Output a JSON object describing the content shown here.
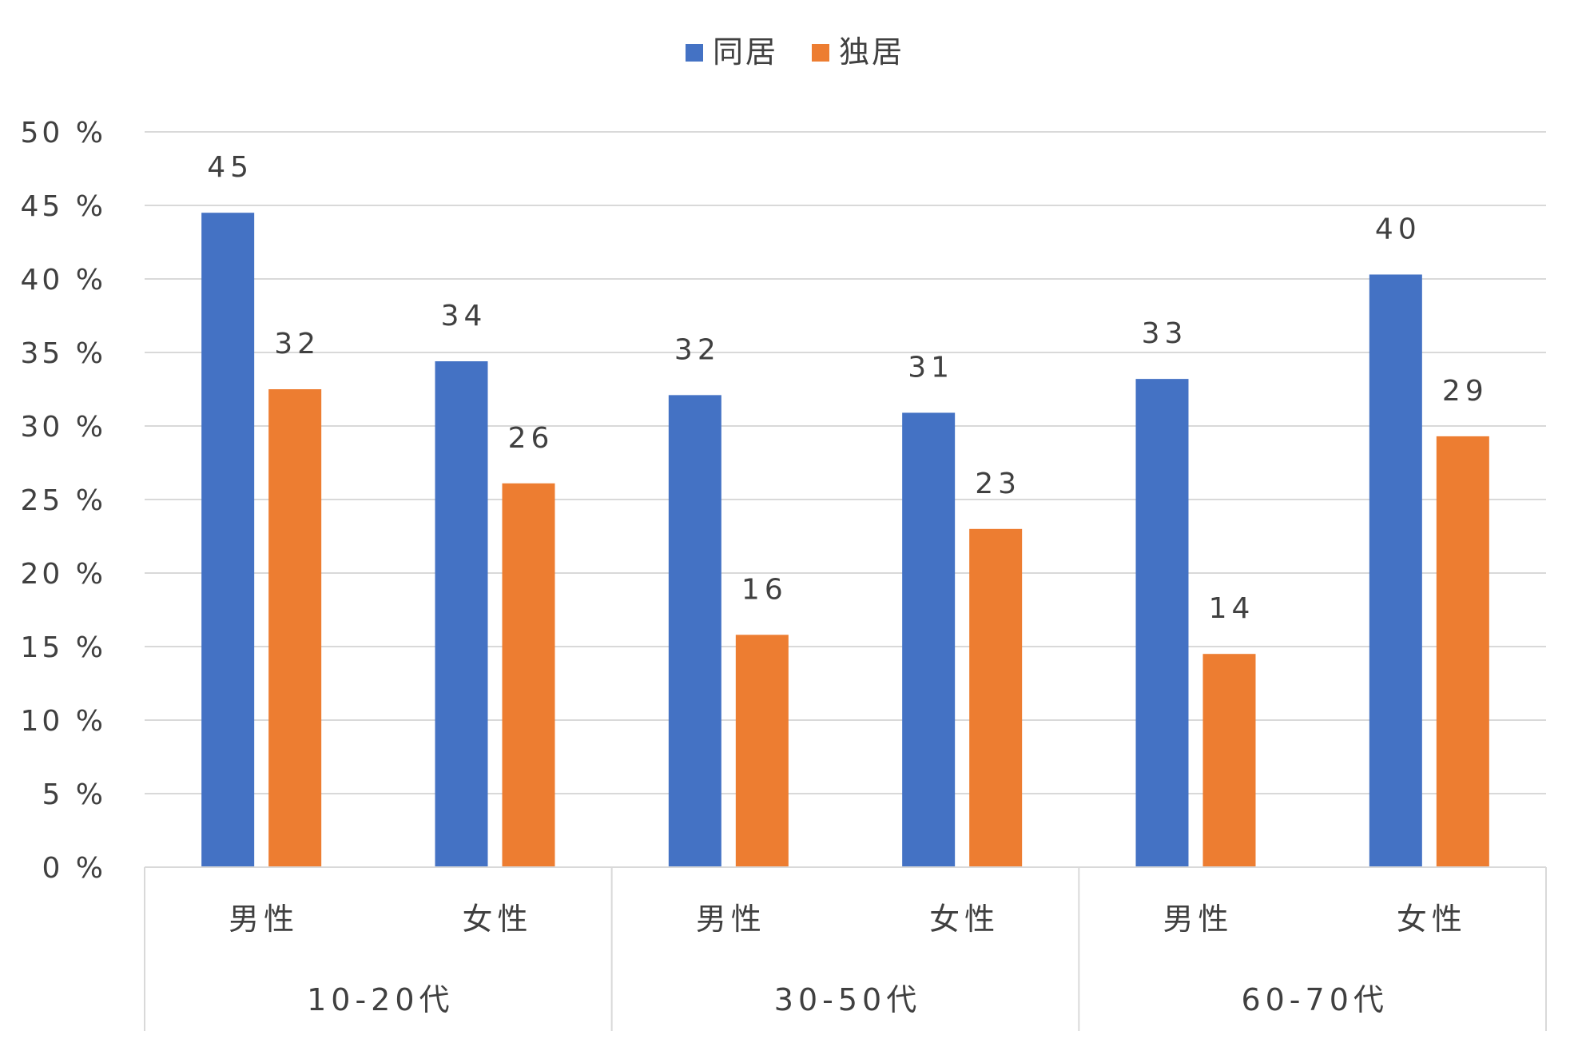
{
  "chart_data": {
    "type": "bar",
    "groups": [
      "10-20代",
      "30-50代",
      "60-70代"
    ],
    "categories": [
      "男性",
      "女性",
      "男性",
      "女性",
      "男性",
      "女性"
    ],
    "series": [
      {
        "name": "同居",
        "color": "#4472C4",
        "values": [
          44.5,
          34.4,
          32.1,
          30.9,
          33.2,
          40.3
        ],
        "labels": [
          "45",
          "34",
          "32",
          "31",
          "33",
          "40"
        ]
      },
      {
        "name": "独居",
        "color": "#ED7D31",
        "values": [
          32.5,
          26.1,
          15.8,
          23.0,
          14.5,
          29.3
        ],
        "labels": [
          "32",
          "26",
          "16",
          "23",
          "14",
          "29"
        ]
      }
    ],
    "ylim": [
      0,
      50
    ],
    "yticks": [
      "0 %",
      "5 %",
      "10 %",
      "15 %",
      "20 %",
      "25 %",
      "30 %",
      "35 %",
      "40 %",
      "45 %",
      "50 %"
    ],
    "grid": true,
    "legend_position": "top-center"
  }
}
